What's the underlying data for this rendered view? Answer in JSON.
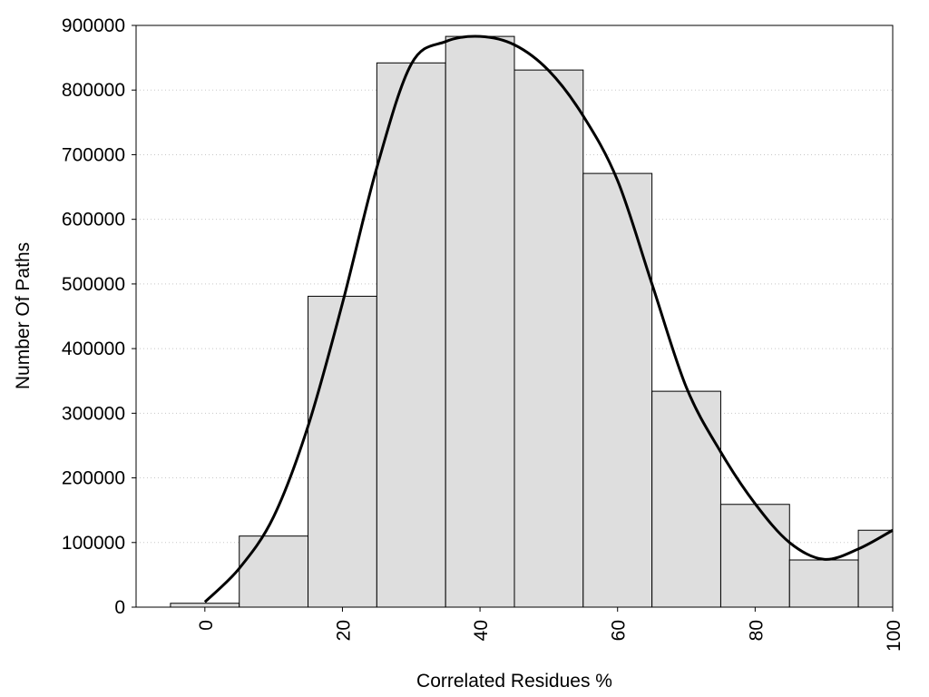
{
  "chart_data": {
    "type": "bar",
    "title": "",
    "xlabel": "Correlated Residues %",
    "ylabel": "Number Of Paths",
    "xlim": [
      -10,
      100
    ],
    "ylim": [
      0,
      900000
    ],
    "xticks": [
      "0",
      "20",
      "40",
      "60",
      "80",
      "100"
    ],
    "yticks": [
      "0",
      "100000",
      "200000",
      "300000",
      "400000",
      "500000",
      "600000",
      "700000",
      "800000",
      "900000"
    ],
    "grid": "horizontal dotted",
    "legend": "none",
    "bins": [
      {
        "start": -5,
        "end": 5,
        "value": 6000
      },
      {
        "start": 5,
        "end": 15,
        "value": 110000
      },
      {
        "start": 15,
        "end": 25,
        "value": 481000
      },
      {
        "start": 25,
        "end": 35,
        "value": 842000
      },
      {
        "start": 35,
        "end": 45,
        "value": 883000
      },
      {
        "start": 45,
        "end": 55,
        "value": 831000
      },
      {
        "start": 55,
        "end": 65,
        "value": 671000
      },
      {
        "start": 65,
        "end": 75,
        "value": 334000
      },
      {
        "start": 75,
        "end": 85,
        "value": 159000
      },
      {
        "start": 85,
        "end": 95,
        "value": 73000
      },
      {
        "start": 95,
        "end": 105,
        "value": 119000
      }
    ],
    "curve": {
      "x": [
        0,
        5,
        10,
        15,
        20,
        25,
        30,
        35,
        40,
        45,
        50,
        55,
        60,
        65,
        70,
        75,
        80,
        85,
        90,
        95,
        100
      ],
      "y": [
        8000,
        60000,
        140000,
        280000,
        470000,
        680000,
        840000,
        875000,
        883000,
        870000,
        830000,
        760000,
        660000,
        500000,
        340000,
        240000,
        160000,
        100000,
        74000,
        90000,
        119000
      ]
    },
    "colors": {
      "bar_fill": "#dedede",
      "bar_stroke": "#000000",
      "curve": "#000000",
      "grid": "#c8c8c8"
    }
  }
}
